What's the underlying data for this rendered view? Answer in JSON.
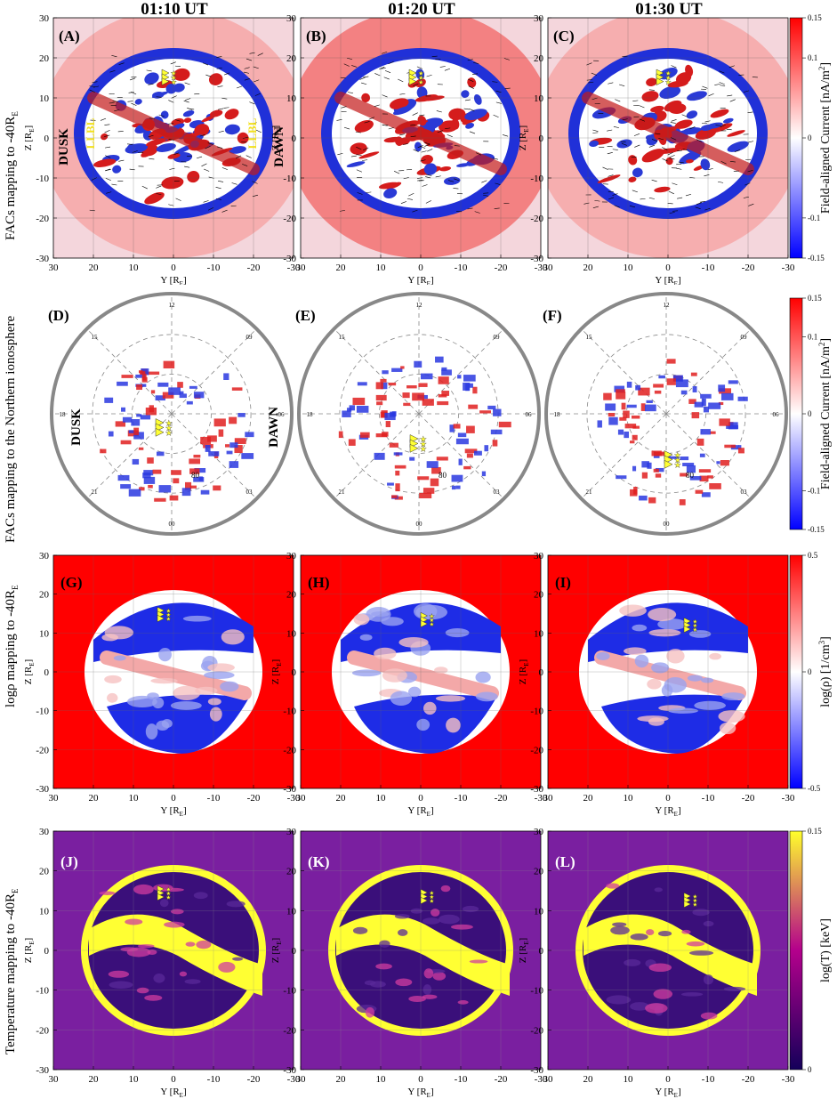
{
  "columns": [
    "01:10 UT",
    "01:20 UT",
    "01:30 UT"
  ],
  "rows": [
    {
      "label": "FACs mapping to -40R",
      "label_sub": "E",
      "panels": [
        "(A)",
        "(B)",
        "(C)"
      ],
      "colorbar": {
        "label": "Field-aligned Current [nA/m",
        "label_sup": "2",
        "label_end": "]",
        "ticks": [
          "0.15",
          "0.1",
          "0",
          "-0.1",
          "-0.15"
        ],
        "low": "#0000ff",
        "mid": "#ffffff",
        "high": "#ff0000"
      }
    },
    {
      "label": "FACs mapping to the Northern ionosphere",
      "label_sub": "",
      "panels": [
        "(D)",
        "(E)",
        "(F)"
      ],
      "colorbar": {
        "label": "Field-aligned Current [nA/m",
        "label_sup": "2",
        "label_end": "]",
        "ticks": [
          "0.15",
          "0.1",
          "0",
          "-0.1",
          "-0.15"
        ],
        "low": "#0000ff",
        "mid": "#ffffff",
        "high": "#ff0000"
      }
    },
    {
      "label": "logρ mapping to -40R",
      "label_sub": "E",
      "panels": [
        "(G)",
        "(H)",
        "(I)"
      ],
      "colorbar": {
        "label": "log(ρ) [1/cm",
        "label_sup": "3",
        "label_end": "]",
        "ticks": [
          "0.5",
          "0",
          "-0.5"
        ],
        "low": "#0000ff",
        "mid": "#ffffff",
        "high": "#ff0000"
      }
    },
    {
      "label": "Temperature mapping to -40R",
      "label_sub": "E",
      "panels": [
        "(J)",
        "(K)",
        "(L)"
      ],
      "colorbar": {
        "label": "log(T) [keV]",
        "label_sup": "",
        "label_end": "",
        "ticks": [
          "0.15",
          "0"
        ],
        "low": "#14005a",
        "mid": "#b4008c",
        "high": "#ffff2c"
      }
    }
  ],
  "axes": {
    "ytick_labels": [
      "30",
      "20",
      "10",
      "0",
      "-10",
      "-20",
      "-30"
    ],
    "xtick_labels": [
      "30",
      "20",
      "10",
      "0",
      "-10",
      "-20",
      "-30"
    ],
    "xlabel": "Y [R",
    "xlabel_sub": "E",
    "ylabel": "Z [R",
    "ylabel_sub": "E"
  },
  "annotations": {
    "dusk": "DUSK",
    "dawn": "DAWN",
    "llbl": "LLBL",
    "mlt_labels": [
      "12",
      "09",
      "06",
      "03",
      "00",
      "21",
      "18",
      "15"
    ],
    "latitude_label": "80"
  }
}
